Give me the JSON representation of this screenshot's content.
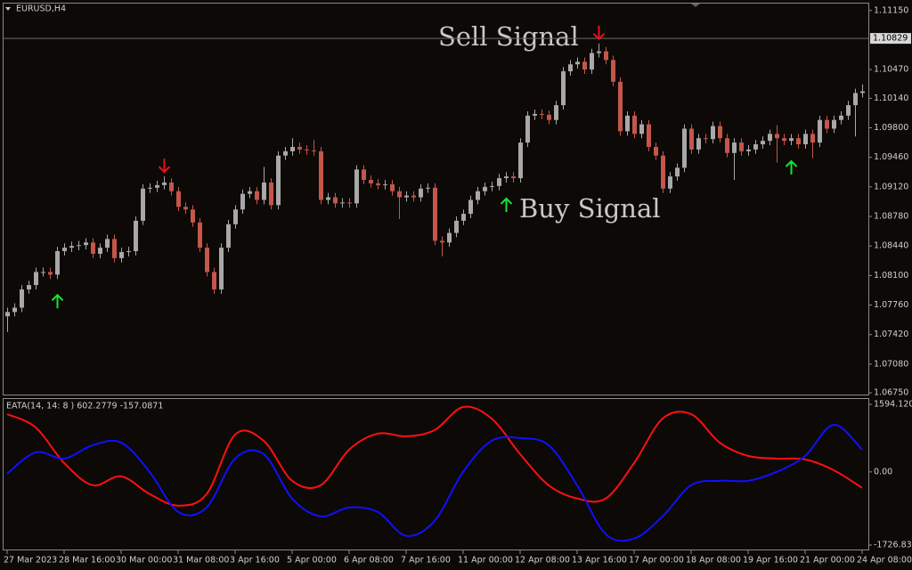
{
  "chart_data": [
    {
      "type": "candlestick",
      "title": "EURUSD,H4",
      "categories": [
        "27 Mar 2023",
        null,
        null,
        null,
        null,
        null,
        null,
        null,
        "28 Mar 16:00",
        null,
        null,
        null,
        null,
        null,
        null,
        null,
        "30 Mar 00:00",
        null,
        null,
        null,
        null,
        null,
        null,
        null,
        "31 Mar 08:00",
        null,
        null,
        null,
        null,
        null,
        null,
        null,
        "3 Apr 16:00",
        null,
        null,
        null,
        null,
        null,
        null,
        null,
        "5 Apr 00:00",
        null,
        null,
        null,
        null,
        null,
        null,
        null,
        "6 Apr 08:00",
        null,
        null,
        null,
        null,
        null,
        null,
        null,
        "7 Apr 16:00",
        null,
        null,
        null,
        null,
        null,
        null,
        null,
        "11 Apr 00:00",
        null,
        null,
        null,
        null,
        null,
        null,
        null,
        "12 Apr 08:00",
        null,
        null,
        null,
        null,
        null,
        null,
        null,
        "13 Apr 16:00",
        null,
        null,
        null,
        null,
        null,
        null,
        null,
        "17 Apr 00:00",
        null,
        null,
        null,
        null,
        null,
        null,
        null,
        "18 Apr 08:00",
        null,
        null,
        null,
        null,
        null,
        null,
        null,
        "19 Apr 16:00",
        null,
        null,
        null,
        null,
        null,
        null,
        null,
        "21 Apr 00:00",
        null,
        null,
        null,
        null,
        null,
        null,
        null,
        "24 Apr 08:00"
      ],
      "open": [
        1.0763,
        1.0768,
        1.0773,
        1.0794,
        1.0799,
        1.0814,
        1.0814,
        1.0811,
        1.0838,
        1.0842,
        1.0844,
        1.0845,
        1.0848,
        1.0835,
        1.0842,
        1.0852,
        1.083,
        1.0837,
        1.0838,
        1.0873,
        1.091,
        1.0911,
        1.0914,
        1.0917,
        1.0907,
        1.0889,
        1.0886,
        1.0871,
        1.0842,
        1.0814,
        1.0794,
        1.0842,
        1.0869,
        1.0886,
        1.0904,
        1.0907,
        1.0897,
        1.0917,
        1.0891,
        1.0948,
        1.0953,
        1.0958,
        1.0955,
        1.0954,
        1.0953,
        1.0897,
        1.09,
        1.0893,
        1.0894,
        1.0893,
        1.0932,
        1.092,
        1.0916,
        1.0914,
        1.0915,
        1.0907,
        1.09,
        1.0902,
        1.09,
        1.091,
        1.0911,
        1.085,
        1.0848,
        1.0859,
        1.0873,
        1.0881,
        1.0897,
        1.0907,
        1.0912,
        1.0913,
        1.0922,
        1.0924,
        1.0922,
        1.0963,
        1.0994,
        1.0996,
        1.0995,
        1.0989,
        1.1006,
        1.1045,
        1.1053,
        1.1056,
        1.1047,
        1.1066,
        1.1068,
        1.1058,
        1.1033,
        1.0976,
        1.0994,
        1.0973,
        1.0984,
        1.0958,
        1.0948,
        1.091,
        1.0924,
        1.0934,
        1.0979,
        1.0955,
        1.0968,
        1.0967,
        1.0982,
        1.0968,
        1.0951,
        1.0963,
        1.0953,
        1.0955,
        1.0961,
        1.0965,
        1.0973,
        1.0968,
        1.0965,
        1.0968,
        1.0961,
        1.0973,
        1.0963,
        1.0989,
        1.0979,
        1.0989,
        1.0994,
        1.1006,
        1.102
      ],
      "high": [
        1.0773,
        1.0778,
        1.0799,
        1.0804,
        1.0819,
        1.0819,
        1.0819,
        1.0843,
        1.0847,
        1.0849,
        1.085,
        1.0853,
        1.0853,
        1.0847,
        1.0857,
        1.0857,
        1.0842,
        1.0843,
        1.0878,
        1.0915,
        1.0916,
        1.0919,
        1.0924,
        1.0922,
        1.0912,
        1.0894,
        1.0891,
        1.0876,
        1.0847,
        1.0819,
        1.0847,
        1.0874,
        1.0891,
        1.0909,
        1.0912,
        1.0912,
        1.0935,
        1.0922,
        1.0953,
        1.0958,
        1.0968,
        1.0963,
        1.096,
        1.0966,
        1.0958,
        1.0905,
        1.0905,
        1.0899,
        1.0899,
        1.0937,
        1.0937,
        1.0925,
        1.0921,
        1.092,
        1.092,
        1.0912,
        1.0907,
        1.0907,
        1.0915,
        1.0916,
        1.0916,
        1.0855,
        1.0864,
        1.0878,
        1.0886,
        1.0902,
        1.0912,
        1.0917,
        1.0918,
        1.0927,
        1.0929,
        1.0929,
        1.0968,
        1.0999,
        1.1001,
        1.1001,
        1.1,
        1.1011,
        1.105,
        1.1058,
        1.1061,
        1.1061,
        1.1071,
        1.1077,
        1.1073,
        1.1063,
        1.1038,
        1.0999,
        1.0999,
        1.0989,
        1.0989,
        1.0963,
        1.0953,
        1.0929,
        1.0939,
        1.0984,
        1.0984,
        1.0973,
        1.0973,
        1.0987,
        1.0987,
        1.0973,
        1.0968,
        1.0968,
        1.096,
        1.0966,
        1.097,
        1.0978,
        1.0983,
        1.0973,
        1.0973,
        1.0973,
        1.0978,
        1.0978,
        1.0994,
        1.0994,
        1.0994,
        1.0999,
        1.1011,
        1.1025,
        1.103
      ],
      "low": [
        1.0745,
        1.0763,
        1.0768,
        1.0789,
        1.0794,
        1.0809,
        1.0806,
        1.0806,
        1.0833,
        1.0837,
        1.0839,
        1.084,
        1.083,
        1.083,
        1.0837,
        1.0825,
        1.0825,
        1.0832,
        1.0833,
        1.0868,
        1.0905,
        1.0906,
        1.0909,
        1.0902,
        1.0884,
        1.0881,
        1.0866,
        1.0837,
        1.0809,
        1.0789,
        1.0789,
        1.0837,
        1.0864,
        1.0881,
        1.0899,
        1.0892,
        1.0892,
        1.0886,
        1.0886,
        1.0943,
        1.0948,
        1.095,
        1.0949,
        1.0948,
        1.0892,
        1.0892,
        1.0888,
        1.0888,
        1.0888,
        1.0888,
        1.0915,
        1.0911,
        1.0909,
        1.0909,
        1.0902,
        1.0875,
        1.0895,
        1.0895,
        1.0895,
        1.0905,
        1.0845,
        1.0832,
        1.0843,
        1.0854,
        1.0868,
        1.0876,
        1.0892,
        1.0902,
        1.0907,
        1.0908,
        1.0917,
        1.0917,
        1.0917,
        1.0958,
        1.0989,
        1.099,
        1.0984,
        1.0984,
        1.1001,
        1.104,
        1.1048,
        1.1042,
        1.1042,
        1.1061,
        1.1053,
        1.1028,
        1.0971,
        1.0971,
        1.0968,
        1.0968,
        1.0953,
        1.0943,
        1.0905,
        1.0905,
        1.0919,
        1.0929,
        1.095,
        1.095,
        1.0962,
        1.0962,
        1.0963,
        1.0946,
        1.092,
        1.0948,
        1.0948,
        1.095,
        1.0956,
        1.096,
        1.094,
        1.096,
        1.096,
        1.0956,
        1.0956,
        1.0945,
        1.0958,
        1.0974,
        1.0974,
        1.0984,
        1.0989,
        1.097,
        1.1015
      ],
      "close": [
        1.0768,
        1.0773,
        1.0794,
        1.0799,
        1.0814,
        1.0814,
        1.0811,
        1.0838,
        1.0842,
        1.0844,
        1.0845,
        1.0848,
        1.0835,
        1.0842,
        1.0852,
        1.083,
        1.0837,
        1.0838,
        1.0873,
        1.091,
        1.0911,
        1.0914,
        1.0917,
        1.0907,
        1.0889,
        1.0886,
        1.0871,
        1.0842,
        1.0814,
        1.0794,
        1.0842,
        1.0869,
        1.0886,
        1.0904,
        1.0907,
        1.0897,
        1.0917,
        1.0891,
        1.0948,
        1.0953,
        1.0958,
        1.0955,
        1.0954,
        1.0953,
        1.0897,
        1.09,
        1.0893,
        1.0894,
        1.0893,
        1.0932,
        1.092,
        1.0916,
        1.0914,
        1.0915,
        1.0907,
        1.09,
        1.0902,
        1.09,
        1.091,
        1.0911,
        1.085,
        1.0848,
        1.0859,
        1.0873,
        1.0881,
        1.0897,
        1.0907,
        1.0912,
        1.0913,
        1.0922,
        1.0924,
        1.0922,
        1.0963,
        1.0994,
        1.0996,
        1.0995,
        1.0989,
        1.1006,
        1.1045,
        1.1053,
        1.1056,
        1.1047,
        1.1066,
        1.1068,
        1.1058,
        1.1033,
        1.0976,
        1.0994,
        1.0973,
        1.0984,
        1.0958,
        1.0948,
        1.091,
        1.0924,
        1.0934,
        1.0979,
        1.0955,
        1.0968,
        1.0967,
        1.0982,
        1.0968,
        1.0951,
        1.0963,
        1.0953,
        1.0955,
        1.0961,
        1.0965,
        1.0973,
        1.0968,
        1.0965,
        1.0968,
        1.0961,
        1.0973,
        1.0963,
        1.0989,
        1.0979,
        1.0989,
        1.0994,
        1.1006,
        1.102,
        1.1022
      ],
      "up_color": "#a8a8a8",
      "down_color": "#c4564a",
      "ylim": [
        1.0673,
        1.1124
      ],
      "yticks": [
        {
          "value": 1.1115,
          "label": "1.11150"
        },
        {
          "value": 1.1047,
          "label": "1.10470"
        },
        {
          "value": 1.1014,
          "label": "1.10140"
        },
        {
          "value": 1.098,
          "label": "1.09800"
        },
        {
          "value": 1.0946,
          "label": "1.09460"
        },
        {
          "value": 1.0912,
          "label": "1.09120"
        },
        {
          "value": 1.0878,
          "label": "1.08780"
        },
        {
          "value": 1.0844,
          "label": "1.08440"
        },
        {
          "value": 1.081,
          "label": "1.08100"
        },
        {
          "value": 1.0776,
          "label": "1.07760"
        },
        {
          "value": 1.0742,
          "label": "1.07420"
        },
        {
          "value": 1.0708,
          "label": "1.07080"
        },
        {
          "value": 1.0675,
          "label": "1.06750"
        }
      ],
      "current_price": 1.10829,
      "sell_signals": [
        22,
        83
      ],
      "buy_signals": [
        7,
        70,
        110
      ],
      "sell_color": "#e8101c",
      "buy_color": "#10e830",
      "annotations": [
        "Sell Signal",
        "Buy Signal"
      ]
    },
    {
      "type": "line",
      "title": "EATA(14, 14: 8 ) 602.2779 -157.0871",
      "x": [
        0,
        4,
        8,
        12,
        16,
        20,
        24,
        28,
        32,
        36,
        40,
        44,
        48,
        52,
        56,
        60,
        64,
        68,
        72,
        76,
        80,
        84,
        88,
        92,
        96,
        100,
        104,
        108,
        112,
        116,
        120
      ],
      "series": [
        {
          "color": "#ff1010",
          "values": [
            1363,
            1049,
            210,
            -315,
            -105,
            -524,
            -797,
            -524,
            881,
            734,
            -210,
            -315,
            524,
            902,
            839,
            986,
            1531,
            1258,
            419,
            -315,
            -629,
            -629,
            210,
            1258,
            1363,
            692,
            377,
            315,
            294,
            42,
            -377
          ]
        },
        {
          "color": "#1010ff",
          "values": [
            -42,
            461,
            315,
            629,
            692,
            0,
            -944,
            -839,
            315,
            419,
            -629,
            -1049,
            -839,
            -944,
            -1510,
            -1153,
            0,
            734,
            797,
            629,
            -315,
            -1468,
            -1573,
            -1049,
            -315,
            -210,
            -210,
            0,
            377,
            1111,
            524
          ]
        }
      ],
      "ylim": [
        -1832,
        1741
      ],
      "yticks": [
        1594.1204,
        {
          "value": 0,
          "label": "0.00"
        },
        -1726.834
      ]
    }
  ]
}
